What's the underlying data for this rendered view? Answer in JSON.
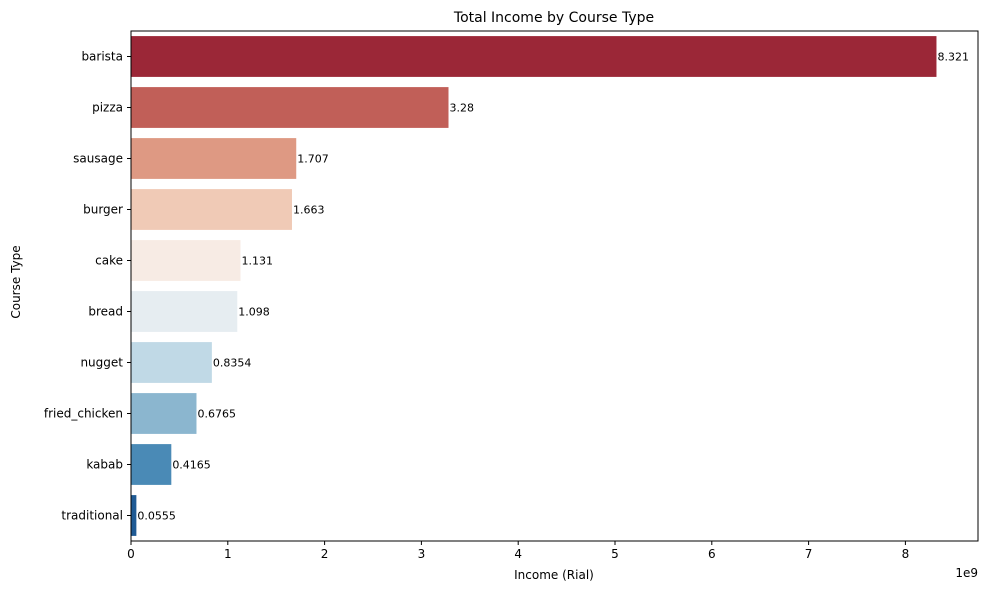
{
  "chart_data": {
    "type": "bar",
    "orientation": "horizontal",
    "title": "Total Income by Course Type",
    "xlabel": "Income (Rial)",
    "ylabel": "Course Type",
    "x_offset_label": "1e9",
    "xlim": [
      0,
      8.75
    ],
    "x_ticks": [
      "0",
      "1",
      "2",
      "3",
      "4",
      "5",
      "6",
      "7",
      "8"
    ],
    "grid": false,
    "categories": [
      "barista",
      "pizza",
      "sausage",
      "burger",
      "cake",
      "bread",
      "nugget",
      "fried_chicken",
      "kabab",
      "traditional"
    ],
    "values": [
      8.321,
      3.28,
      1.707,
      1.663,
      1.131,
      1.098,
      0.8354,
      0.6765,
      0.4165,
      0.0555
    ],
    "data_labels": [
      "8.321",
      "3.28",
      "1.707",
      "1.663",
      "1.131",
      "1.098",
      "0.8354",
      "0.6765",
      "0.4165",
      "0.0555"
    ],
    "colors": [
      "#9b2737",
      "#c15f58",
      "#de9983",
      "#f0cab6",
      "#f7ebe4",
      "#e6edf1",
      "#c0d9e6",
      "#8bb6cf",
      "#4a8ab6",
      "#1f5a94"
    ]
  }
}
